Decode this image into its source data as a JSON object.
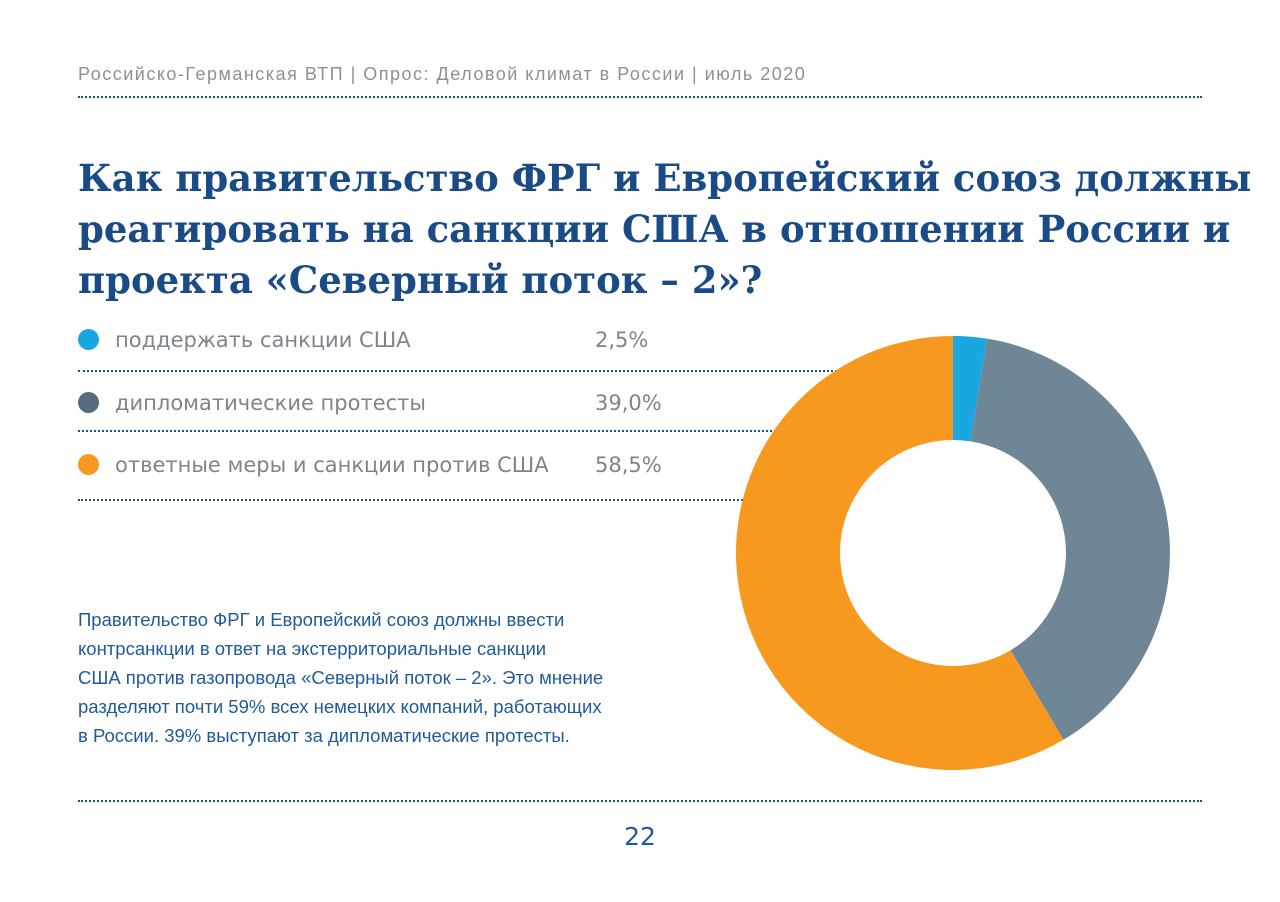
{
  "header": {
    "text": "Российско-Германская ВТП | Опрос: Деловой климат в России | июль 2020"
  },
  "title": {
    "lines": [
      "Как правительство ФРГ и Европейский союз должны",
      "реагировать на санкции США в отношении России и",
      "проекта «Северный поток – 2»?"
    ]
  },
  "chart_data": {
    "type": "pie",
    "donut": true,
    "categories": [
      "поддержать санкции США",
      "дипломатические протесты",
      "ответные меры и санкции против США"
    ],
    "values": [
      2.5,
      39.0,
      58.5
    ],
    "value_labels": [
      "2,5%",
      "39,0%",
      "58,5%"
    ],
    "colors": [
      "#1aa7e0",
      "#6f8697",
      "#f7991e"
    ],
    "legend_colors": [
      "#1aa7e0",
      "#566a80",
      "#f7991e"
    ],
    "start_angle_deg": 0,
    "direction": "clockwise",
    "legend_position": "left"
  },
  "description": {
    "lines": [
      "Правительство ФРГ и Европейский союз должны ввести",
      "контрсанкции в ответ на экстерриториальные санкции",
      "США против газопровода «Северный поток – 2». Это мнение",
      "разделяют почти 59% всех немецких компаний, работающих",
      "в России. 39% выступают за дипломатические протесты."
    ]
  },
  "footer": {
    "page_number": "22"
  }
}
